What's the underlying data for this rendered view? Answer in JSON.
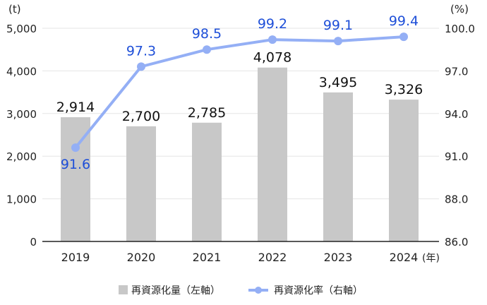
{
  "chart_data": {
    "type": "bar+line",
    "categories": [
      "2019",
      "2020",
      "2021",
      "2022",
      "2023",
      "2024"
    ],
    "x_unit": "(年)",
    "series": [
      {
        "name": "再資源化量（左軸）",
        "type": "bar",
        "axis": "left",
        "color": "#c8c8c8",
        "values": [
          2914,
          2700,
          2785,
          4078,
          3495,
          3326
        ],
        "labels": [
          "2,914",
          "2,700",
          "2,785",
          "4,078",
          "3,495",
          "3,326"
        ]
      },
      {
        "name": "再資源化率（右軸）",
        "type": "line",
        "axis": "right",
        "color": "#94aff5",
        "label_color": "#1e4fd8",
        "values": [
          91.6,
          97.3,
          98.5,
          99.2,
          99.1,
          99.4
        ],
        "labels": [
          "91.6",
          "97.3",
          "98.5",
          "99.2",
          "99.1",
          "99.4"
        ]
      }
    ],
    "left_axis": {
      "unit": "(t)",
      "ylim": [
        0,
        5000
      ],
      "ticks": [
        0,
        1000,
        2000,
        3000,
        4000,
        5000
      ],
      "tick_labels": [
        "0",
        "1,000",
        "2,000",
        "3,000",
        "4,000",
        "5,000"
      ]
    },
    "right_axis": {
      "unit": "(%)",
      "ylim": [
        85,
        100
      ],
      "tick_labels": [
        "86.0",
        "88.0",
        "91.0",
        "94.0",
        "97.0",
        "100.0"
      ]
    },
    "grid": true,
    "legend": "bottom",
    "legend_labels": [
      "再資源化量（左軸）",
      "再資源化率（右軸）"
    ]
  }
}
